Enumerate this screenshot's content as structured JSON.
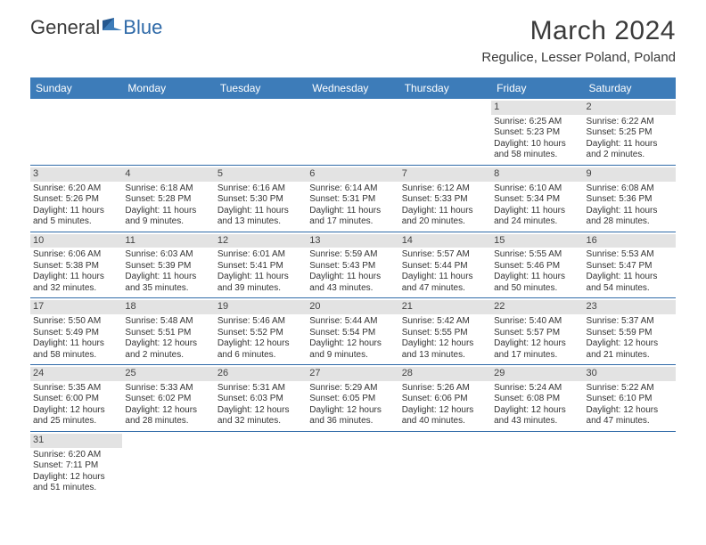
{
  "logo": {
    "text1": "General",
    "text2": "Blue"
  },
  "title": "March 2024",
  "location": "Regulice, Lesser Poland, Poland",
  "dayNames": [
    "Sunday",
    "Monday",
    "Tuesday",
    "Wednesday",
    "Thursday",
    "Friday",
    "Saturday"
  ],
  "colors": {
    "headerBg": "#3d7cb9",
    "headerText": "#ffffff",
    "rowLine": "#2f6aa8",
    "dayNumBg": "#e3e3e3",
    "bodyText": "#333333"
  },
  "weeks": [
    [
      null,
      null,
      null,
      null,
      null,
      {
        "n": "1",
        "sr": "Sunrise: 6:25 AM",
        "ss": "Sunset: 5:23 PM",
        "d1": "Daylight: 10 hours",
        "d2": "and 58 minutes."
      },
      {
        "n": "2",
        "sr": "Sunrise: 6:22 AM",
        "ss": "Sunset: 5:25 PM",
        "d1": "Daylight: 11 hours",
        "d2": "and 2 minutes."
      }
    ],
    [
      {
        "n": "3",
        "sr": "Sunrise: 6:20 AM",
        "ss": "Sunset: 5:26 PM",
        "d1": "Daylight: 11 hours",
        "d2": "and 5 minutes."
      },
      {
        "n": "4",
        "sr": "Sunrise: 6:18 AM",
        "ss": "Sunset: 5:28 PM",
        "d1": "Daylight: 11 hours",
        "d2": "and 9 minutes."
      },
      {
        "n": "5",
        "sr": "Sunrise: 6:16 AM",
        "ss": "Sunset: 5:30 PM",
        "d1": "Daylight: 11 hours",
        "d2": "and 13 minutes."
      },
      {
        "n": "6",
        "sr": "Sunrise: 6:14 AM",
        "ss": "Sunset: 5:31 PM",
        "d1": "Daylight: 11 hours",
        "d2": "and 17 minutes."
      },
      {
        "n": "7",
        "sr": "Sunrise: 6:12 AM",
        "ss": "Sunset: 5:33 PM",
        "d1": "Daylight: 11 hours",
        "d2": "and 20 minutes."
      },
      {
        "n": "8",
        "sr": "Sunrise: 6:10 AM",
        "ss": "Sunset: 5:34 PM",
        "d1": "Daylight: 11 hours",
        "d2": "and 24 minutes."
      },
      {
        "n": "9",
        "sr": "Sunrise: 6:08 AM",
        "ss": "Sunset: 5:36 PM",
        "d1": "Daylight: 11 hours",
        "d2": "and 28 minutes."
      }
    ],
    [
      {
        "n": "10",
        "sr": "Sunrise: 6:06 AM",
        "ss": "Sunset: 5:38 PM",
        "d1": "Daylight: 11 hours",
        "d2": "and 32 minutes."
      },
      {
        "n": "11",
        "sr": "Sunrise: 6:03 AM",
        "ss": "Sunset: 5:39 PM",
        "d1": "Daylight: 11 hours",
        "d2": "and 35 minutes."
      },
      {
        "n": "12",
        "sr": "Sunrise: 6:01 AM",
        "ss": "Sunset: 5:41 PM",
        "d1": "Daylight: 11 hours",
        "d2": "and 39 minutes."
      },
      {
        "n": "13",
        "sr": "Sunrise: 5:59 AM",
        "ss": "Sunset: 5:43 PM",
        "d1": "Daylight: 11 hours",
        "d2": "and 43 minutes."
      },
      {
        "n": "14",
        "sr": "Sunrise: 5:57 AM",
        "ss": "Sunset: 5:44 PM",
        "d1": "Daylight: 11 hours",
        "d2": "and 47 minutes."
      },
      {
        "n": "15",
        "sr": "Sunrise: 5:55 AM",
        "ss": "Sunset: 5:46 PM",
        "d1": "Daylight: 11 hours",
        "d2": "and 50 minutes."
      },
      {
        "n": "16",
        "sr": "Sunrise: 5:53 AM",
        "ss": "Sunset: 5:47 PM",
        "d1": "Daylight: 11 hours",
        "d2": "and 54 minutes."
      }
    ],
    [
      {
        "n": "17",
        "sr": "Sunrise: 5:50 AM",
        "ss": "Sunset: 5:49 PM",
        "d1": "Daylight: 11 hours",
        "d2": "and 58 minutes."
      },
      {
        "n": "18",
        "sr": "Sunrise: 5:48 AM",
        "ss": "Sunset: 5:51 PM",
        "d1": "Daylight: 12 hours",
        "d2": "and 2 minutes."
      },
      {
        "n": "19",
        "sr": "Sunrise: 5:46 AM",
        "ss": "Sunset: 5:52 PM",
        "d1": "Daylight: 12 hours",
        "d2": "and 6 minutes."
      },
      {
        "n": "20",
        "sr": "Sunrise: 5:44 AM",
        "ss": "Sunset: 5:54 PM",
        "d1": "Daylight: 12 hours",
        "d2": "and 9 minutes."
      },
      {
        "n": "21",
        "sr": "Sunrise: 5:42 AM",
        "ss": "Sunset: 5:55 PM",
        "d1": "Daylight: 12 hours",
        "d2": "and 13 minutes."
      },
      {
        "n": "22",
        "sr": "Sunrise: 5:40 AM",
        "ss": "Sunset: 5:57 PM",
        "d1": "Daylight: 12 hours",
        "d2": "and 17 minutes."
      },
      {
        "n": "23",
        "sr": "Sunrise: 5:37 AM",
        "ss": "Sunset: 5:59 PM",
        "d1": "Daylight: 12 hours",
        "d2": "and 21 minutes."
      }
    ],
    [
      {
        "n": "24",
        "sr": "Sunrise: 5:35 AM",
        "ss": "Sunset: 6:00 PM",
        "d1": "Daylight: 12 hours",
        "d2": "and 25 minutes."
      },
      {
        "n": "25",
        "sr": "Sunrise: 5:33 AM",
        "ss": "Sunset: 6:02 PM",
        "d1": "Daylight: 12 hours",
        "d2": "and 28 minutes."
      },
      {
        "n": "26",
        "sr": "Sunrise: 5:31 AM",
        "ss": "Sunset: 6:03 PM",
        "d1": "Daylight: 12 hours",
        "d2": "and 32 minutes."
      },
      {
        "n": "27",
        "sr": "Sunrise: 5:29 AM",
        "ss": "Sunset: 6:05 PM",
        "d1": "Daylight: 12 hours",
        "d2": "and 36 minutes."
      },
      {
        "n": "28",
        "sr": "Sunrise: 5:26 AM",
        "ss": "Sunset: 6:06 PM",
        "d1": "Daylight: 12 hours",
        "d2": "and 40 minutes."
      },
      {
        "n": "29",
        "sr": "Sunrise: 5:24 AM",
        "ss": "Sunset: 6:08 PM",
        "d1": "Daylight: 12 hours",
        "d2": "and 43 minutes."
      },
      {
        "n": "30",
        "sr": "Sunrise: 5:22 AM",
        "ss": "Sunset: 6:10 PM",
        "d1": "Daylight: 12 hours",
        "d2": "and 47 minutes."
      }
    ],
    [
      {
        "n": "31",
        "sr": "Sunrise: 6:20 AM",
        "ss": "Sunset: 7:11 PM",
        "d1": "Daylight: 12 hours",
        "d2": "and 51 minutes."
      },
      null,
      null,
      null,
      null,
      null,
      null
    ]
  ]
}
